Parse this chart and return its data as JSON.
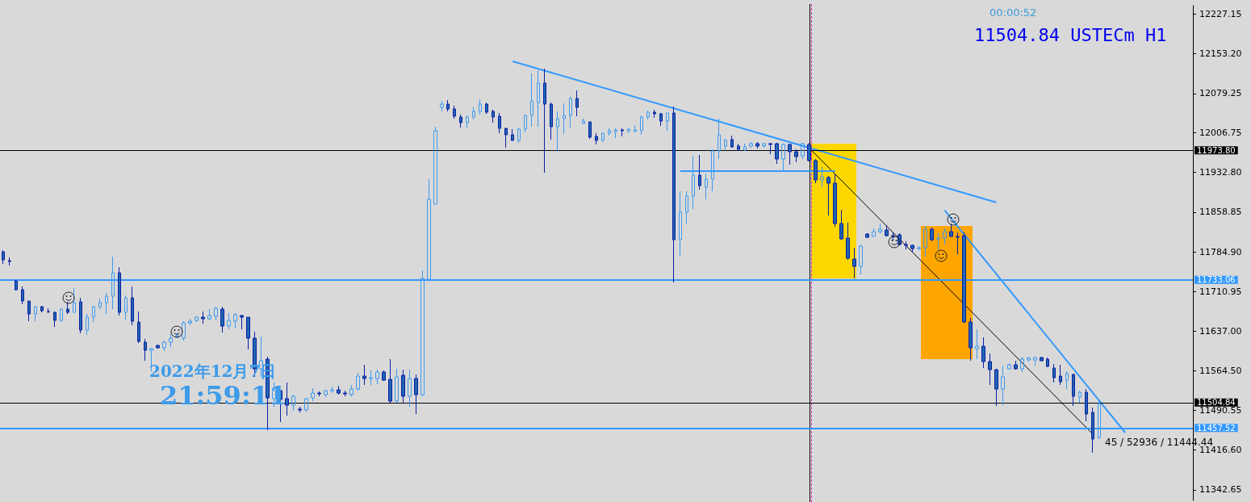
{
  "chart_data": {
    "type": "candlestick",
    "annotations": [
      "00:00:52",
      "11504.84 USTECm H1",
      "2022年12月7日",
      "21:59:11",
      "45 / 52936 / 11444.44"
    ],
    "categories": [
      null,
      null,
      null,
      null,
      null,
      null,
      null,
      null,
      null,
      null,
      null,
      null,
      null,
      null,
      null,
      null,
      null,
      null,
      null,
      null,
      null,
      null,
      null,
      null,
      null,
      null,
      null,
      null,
      null,
      null,
      null,
      null,
      null,
      null,
      null,
      null,
      null,
      null,
      null,
      null,
      null,
      null,
      null,
      null,
      null,
      null,
      null,
      null,
      null,
      null,
      null,
      null,
      null,
      null,
      null,
      null,
      null,
      null,
      null,
      null,
      null,
      null,
      null,
      null,
      null,
      null,
      null,
      null,
      null,
      null,
      null,
      null,
      null,
      null,
      null,
      null,
      null,
      null,
      null,
      null,
      null,
      null,
      null,
      null,
      null,
      null,
      null,
      null,
      null,
      null,
      null,
      null,
      null,
      null,
      null,
      null,
      null,
      null,
      null,
      null,
      null,
      null,
      null,
      null,
      null,
      null,
      null,
      null,
      null,
      null,
      null,
      null,
      null,
      null,
      null,
      null,
      null,
      null,
      null,
      null,
      null,
      null,
      null,
      null,
      null,
      null,
      null,
      null,
      null,
      null,
      null,
      null,
      null,
      null,
      null,
      null,
      null,
      null,
      null,
      null,
      null,
      null,
      null,
      null,
      null,
      null,
      null,
      null,
      null,
      null,
      null,
      null,
      null,
      null,
      null,
      null,
      null,
      null,
      null,
      null,
      null,
      null,
      null,
      null,
      null,
      null,
      null,
      null,
      null,
      null,
      null,
      null,
      null,
      null,
      null,
      null,
      null,
      null,
      null,
      null,
      null,
      null,
      null,
      null,
      null
    ],
    "ohlc": [
      [
        11785,
        11788,
        11762.5,
        11770
      ],
      [
        11768.5,
        11774.5,
        11759.5,
        11767
      ],
      [
        11731,
        11732.5,
        11713,
        11714.5
      ],
      [
        11714.5,
        11720.5,
        11687.5,
        11693.5
      ],
      [
        11693.5,
        11693.5,
        11656,
        11669.5
      ],
      [
        11669.5,
        11684.5,
        11656,
        11683
      ],
      [
        11683,
        11684.5,
        11672.5,
        11675.5
      ],
      [
        11674,
        11680,
        11671,
        11674
      ],
      [
        11672.5,
        11674,
        11645.5,
        11657.5
      ],
      [
        11657.5,
        11680,
        11654.5,
        11678.5
      ],
      [
        11678.5,
        11692,
        11669.5,
        11672.5
      ],
      [
        11672.5,
        11717.5,
        11672.5,
        11690.5
      ],
      [
        11692,
        11699.5,
        11633.5,
        11639.5
      ],
      [
        11639.5,
        11669.5,
        11630.5,
        11663.5
      ],
      [
        11663.5,
        11684.5,
        11654.5,
        11683
      ],
      [
        11683,
        11698,
        11678.5,
        11690.5
      ],
      [
        11690.5,
        11708.5,
        11669.5,
        11702.5
      ],
      [
        11702.5,
        11776,
        11678.5,
        11746
      ],
      [
        11746,
        11756.5,
        11666.5,
        11672.5
      ],
      [
        11672.5,
        11704,
        11657.5,
        11699.5
      ],
      [
        11699.5,
        11720.5,
        11648.5,
        11656
      ],
      [
        11654.5,
        11674,
        11615.5,
        11618.5
      ],
      [
        11617,
        11623,
        11582.5,
        11602
      ],
      [
        11602,
        11606.5,
        11563,
        11605
      ],
      [
        11611,
        11612.5,
        11605,
        11606.5
      ],
      [
        11606.5,
        11620,
        11600.5,
        11617
      ],
      [
        11617,
        11632,
        11608,
        11624.5
      ],
      [
        11627.5,
        11635,
        11624.5,
        11629
      ],
      [
        11624.5,
        11656,
        11620,
        11653
      ],
      [
        11653,
        11660.5,
        11648.5,
        11656
      ],
      [
        11657.5,
        11665,
        11654.5,
        11663.5
      ],
      [
        11663.5,
        11674,
        11651.5,
        11660.5
      ],
      [
        11660.5,
        11678.5,
        11657.5,
        11666.5
      ],
      [
        11665,
        11683,
        11657.5,
        11680
      ],
      [
        11678.5,
        11683,
        11635,
        11647
      ],
      [
        11647,
        11671,
        11641,
        11657.5
      ],
      [
        11656,
        11671,
        11642.5,
        11668
      ],
      [
        11666.5,
        11668,
        11641,
        11663.5
      ],
      [
        11663.5,
        11663.5,
        11603.5,
        11624.5
      ],
      [
        11624.5,
        11636.5,
        11552.5,
        11567.5
      ],
      [
        11567.5,
        11627.5,
        11552.5,
        11582.5
      ],
      [
        11585.5,
        11590,
        11453.5,
        11513.5
      ],
      [
        11512,
        11542,
        11497,
        11527
      ],
      [
        11527,
        11527,
        11468.5,
        11510.5
      ],
      [
        11512,
        11542,
        11480.5,
        11500
      ],
      [
        11500,
        11519.5,
        11489.5,
        11516.5
      ],
      [
        11492.5,
        11497,
        11486.5,
        11491
      ],
      [
        11491,
        11513.5,
        11488,
        11512
      ],
      [
        11513.5,
        11531.5,
        11507.5,
        11522.5
      ],
      [
        11522.5,
        11525.5,
        11516.5,
        11521
      ],
      [
        11519.5,
        11528.5,
        11515,
        11527
      ],
      [
        11527,
        11534.5,
        11522.5,
        11528.5
      ],
      [
        11528.5,
        11536,
        11519.5,
        11522.5
      ],
      [
        11522.5,
        11527,
        11516.5,
        11521
      ],
      [
        11519.5,
        11537.5,
        11516.5,
        11530
      ],
      [
        11530,
        11560,
        11527,
        11554
      ],
      [
        11554,
        11575,
        11537.5,
        11549.5
      ],
      [
        11549.5,
        11564.5,
        11537.5,
        11551
      ],
      [
        11549.5,
        11566,
        11539,
        11561.5
      ],
      [
        11561.5,
        11564.5,
        11545,
        11546.5
      ],
      [
        11548,
        11585.5,
        11504.5,
        11507.5
      ],
      [
        11507.5,
        11567.5,
        11504.5,
        11552.5
      ],
      [
        11555.5,
        11566,
        11504.5,
        11516.5
      ],
      [
        11516.5,
        11566,
        11497,
        11549.5
      ],
      [
        11549.5,
        11557,
        11483.5,
        11519.5
      ],
      [
        11519.5,
        11750.5,
        11516.5,
        11735.5
      ],
      [
        11734,
        11920,
        11734,
        11882.5
      ],
      [
        11873.5,
        12017.5,
        11873.5,
        12010
      ],
      [
        12053.5,
        12065.5,
        12046,
        12059.5
      ],
      [
        12059.5,
        12067,
        12046,
        12050.5
      ],
      [
        12050.5,
        12056.5,
        12032.5,
        12037
      ],
      [
        12035.5,
        12040,
        12016,
        12025
      ],
      [
        12025,
        12038.5,
        12014.5,
        12035.5
      ],
      [
        12035.5,
        12053.5,
        12031,
        12046
      ],
      [
        12046,
        12068.5,
        12040,
        12059.5
      ],
      [
        12059.5,
        12062.5,
        12041.5,
        12044.5
      ],
      [
        12046,
        12049,
        12025,
        12035.5
      ],
      [
        12037,
        12043,
        12005.5,
        12014.5
      ],
      [
        12014.5,
        12014.5,
        11978.5,
        12002.5
      ],
      [
        12002.5,
        12013,
        11992,
        11992
      ],
      [
        11992,
        12016,
        11987.5,
        12013
      ],
      [
        12013,
        12040,
        12007,
        12038.5
      ],
      [
        12038.5,
        12116.5,
        12017.5,
        12065.5
      ],
      [
        12062.5,
        12122.5,
        12017.5,
        12098.5
      ],
      [
        12098.5,
        12125.5,
        11932,
        12059.5
      ],
      [
        12059.5,
        12062.5,
        11993.5,
        12017.5
      ],
      [
        12017.5,
        12046,
        11971,
        12032.5
      ],
      [
        12032.5,
        12061,
        12004,
        12038.5
      ],
      [
        12038.5,
        12073,
        12016,
        12070
      ],
      [
        12070,
        12085,
        12037,
        12053.5
      ],
      [
        12023.5,
        12032.5,
        12022,
        12028
      ],
      [
        12026.5,
        12026.5,
        11995,
        11998
      ],
      [
        11999.5,
        12005.5,
        11984.5,
        11992
      ],
      [
        11992,
        12007,
        11989,
        12005.5
      ],
      [
        12005.5,
        12014.5,
        12001,
        12010
      ],
      [
        12008.5,
        12014.5,
        11996.5,
        12011.5
      ],
      [
        12011.5,
        12014.5,
        11999.5,
        12010
      ],
      [
        12010,
        12014.5,
        12005.5,
        12013
      ],
      [
        12008.5,
        12020.5,
        12008.5,
        12011.5
      ],
      [
        12010,
        12038.5,
        12002.5,
        12035.5
      ],
      [
        12035.5,
        12047.5,
        12031,
        12044.5
      ],
      [
        12044.5,
        12049,
        12034,
        12041.5
      ],
      [
        12041.5,
        12043,
        12019,
        12028
      ],
      [
        12028,
        12043,
        12010,
        12043
      ],
      [
        12043,
        12055,
        11728,
        11807.5
      ],
      [
        11807.5,
        11897.5,
        11776,
        11858.5
      ],
      [
        11858.5,
        11897.5,
        11837.5,
        11888.5
      ],
      [
        11888.5,
        11963.5,
        11864.5,
        11927.5
      ],
      [
        11927.5,
        11965,
        11900.5,
        11908
      ],
      [
        11905,
        11930.5,
        11882.5,
        11920
      ],
      [
        11920,
        11975.5,
        11897.5,
        11972.5
      ],
      [
        11972.5,
        12032.5,
        11957.5,
        12002.5
      ],
      [
        11981.5,
        11995,
        11975.5,
        11992
      ],
      [
        11993.5,
        12001,
        11978.5,
        11980
      ],
      [
        11981.5,
        11986,
        11972.5,
        11975.5
      ],
      [
        11974,
        11986,
        11972.5,
        11980
      ],
      [
        11981.5,
        11989,
        11978.5,
        11986
      ],
      [
        11986,
        11989,
        11977,
        11981.5
      ],
      [
        11982,
        11987,
        11978.5,
        11986
      ],
      [
        11986,
        11987.5,
        11966.5,
        11984.5
      ],
      [
        11986,
        11987.5,
        11948.5,
        11957.5
      ],
      [
        11957.5,
        11986,
        11936.5,
        11984.5
      ],
      [
        11984.5,
        11986,
        11947,
        11971
      ],
      [
        11971,
        11975.5,
        11951.5,
        11962
      ],
      [
        11963.5,
        11987.5,
        11957.5,
        11986
      ],
      [
        11984.5,
        11987.5,
        11953,
        11954.5
      ],
      [
        11954.5,
        11957.5,
        11912.5,
        11918.5
      ],
      [
        11918.5,
        11942.5,
        11905,
        11924.5
      ],
      [
        11923,
        11926,
        11852.5,
        11912.5
      ],
      [
        11912.5,
        11930.5,
        11831.5,
        11837.5
      ],
      [
        11837.5,
        11863,
        11807.5,
        11809
      ],
      [
        11810.5,
        11839,
        11770,
        11773
      ],
      [
        11771.5,
        11792.5,
        11735.5,
        11758
      ],
      [
        11758,
        11798.5,
        11743,
        11795.5
      ],
      [
        11818,
        11819.5,
        11810.5,
        11812
      ],
      [
        11813.5,
        11828.5,
        11813.5,
        11822.5
      ],
      [
        11822.5,
        11837.5,
        11819.5,
        11827
      ],
      [
        11825.5,
        11834.5,
        11813.5,
        11815
      ],
      [
        11815,
        11821,
        11806,
        11813.5
      ],
      [
        11816.5,
        11819.5,
        11797,
        11798.5
      ],
      [
        11798.5,
        11804.5,
        11789.5,
        11797
      ],
      [
        11797,
        11798.5,
        11783.5,
        11791
      ],
      [
        11791,
        11795.5,
        11788,
        11792.5
      ],
      [
        11792.5,
        11833,
        11776,
        11827
      ],
      [
        11827,
        11830,
        11804.5,
        11807.5
      ],
      [
        11809,
        11819.5,
        11788,
        11810.5
      ],
      [
        11810.5,
        11828.5,
        11798.5,
        11822.5
      ],
      [
        11822.5,
        11837.5,
        11813.5,
        11813.5
      ],
      [
        11813.5,
        11821,
        11780.5,
        11812
      ],
      [
        11815,
        11821,
        11653,
        11654.5
      ],
      [
        11654.5,
        11662,
        11582.5,
        11606.5
      ],
      [
        11605,
        11641,
        11585.5,
        11609.5
      ],
      [
        11609.5,
        11626,
        11569,
        11581
      ],
      [
        11581,
        11596,
        11537.5,
        11566
      ],
      [
        11566,
        11567.5,
        11498.5,
        11530
      ],
      [
        11530,
        11573.5,
        11500,
        11552.5
      ],
      [
        11567.5,
        11578,
        11566,
        11575
      ],
      [
        11575,
        11582.5,
        11566,
        11567.5
      ],
      [
        11567.5,
        11590,
        11561.5,
        11585.5
      ],
      [
        11584,
        11590,
        11581,
        11587.5
      ],
      [
        11584,
        11590,
        11573.5,
        11588.5
      ],
      [
        11588.5,
        11590,
        11582.5,
        11582.5
      ],
      [
        11585.5,
        11588.5,
        11570.5,
        11572
      ],
      [
        11569,
        11576.5,
        11542,
        11551
      ],
      [
        11554,
        11575,
        11537.5,
        11543.5
      ],
      [
        11546.5,
        11563,
        11530,
        11558.5
      ],
      [
        11557,
        11558.5,
        11498.5,
        11516.5
      ],
      [
        11515,
        11527,
        11504.5,
        11524
      ],
      [
        11524,
        11530,
        11470,
        11483.5
      ],
      [
        11486.5,
        11495.5,
        11411.5,
        11437
      ],
      [
        11440,
        11510.5,
        11437,
        11503
      ],
      null,
      null,
      null,
      null,
      null,
      null,
      null,
      null,
      null,
      null,
      null,
      null,
      null,
      null
    ],
    "series": [
      {
        "type": "line",
        "color": "#3399ff",
        "values": [
          null,
          null,
          null,
          null,
          null,
          null,
          null,
          null,
          null,
          null,
          null,
          null,
          null,
          null,
          null,
          null,
          null,
          null,
          null,
          null,
          null,
          null,
          null,
          null,
          null,
          null,
          null,
          null,
          null,
          null,
          null,
          null,
          null,
          null,
          null,
          null,
          null,
          null,
          null,
          null,
          null,
          null,
          null,
          null,
          null,
          null,
          null,
          null,
          null,
          null,
          null,
          null,
          null,
          null,
          null,
          null,
          null,
          null,
          null,
          null,
          null,
          null,
          null,
          null,
          null,
          null,
          null,
          null,
          null,
          null,
          null,
          null,
          null,
          null,
          null,
          null,
          null,
          null,
          null,
          12139,
          null,
          null,
          null,
          null,
          null,
          null,
          null,
          null,
          null,
          null,
          null,
          null,
          null,
          null,
          null,
          null,
          null,
          null,
          null,
          null,
          null,
          null,
          null,
          null,
          null,
          null,
          null,
          null,
          null,
          null,
          null,
          null,
          null,
          null,
          null,
          null,
          null,
          null,
          null,
          null,
          null,
          null,
          null,
          null,
          null,
          null,
          null,
          null,
          null,
          null,
          null,
          null,
          null,
          null,
          null,
          null,
          null,
          null,
          null,
          null,
          null,
          null,
          null,
          null,
          null,
          null,
          null,
          null,
          null,
          null,
          null,
          null,
          null,
          null,
          11877,
          null,
          null,
          null,
          null,
          null,
          null,
          null,
          null,
          null,
          null,
          null,
          null,
          null,
          null,
          null,
          null,
          null,
          null,
          null,
          null,
          null,
          null,
          null,
          null,
          null,
          null,
          null,
          null,
          null,
          null
        ]
      },
      {
        "type": "line",
        "color": "#3399ff",
        "values": [
          null,
          null,
          null,
          null,
          null,
          null,
          null,
          null,
          null,
          null,
          null,
          null,
          null,
          null,
          null,
          null,
          null,
          null,
          null,
          null,
          null,
          null,
          null,
          null,
          null,
          null,
          null,
          null,
          null,
          null,
          null,
          null,
          null,
          null,
          null,
          null,
          null,
          null,
          null,
          null,
          null,
          null,
          null,
          null,
          null,
          null,
          null,
          null,
          null,
          null,
          null,
          null,
          null,
          null,
          null,
          null,
          null,
          null,
          null,
          null,
          null,
          null,
          null,
          null,
          null,
          null,
          null,
          null,
          null,
          null,
          null,
          null,
          null,
          null,
          null,
          null,
          null,
          null,
          null,
          null,
          null,
          null,
          null,
          null,
          null,
          null,
          null,
          null,
          null,
          null,
          null,
          null,
          null,
          null,
          null,
          null,
          null,
          null,
          null,
          null,
          null,
          null,
          null,
          null,
          null,
          null,
          null,
          null,
          null,
          null,
          null,
          null,
          null,
          null,
          null,
          null,
          null,
          null,
          null,
          null,
          null,
          null,
          null,
          null,
          null,
          null,
          null,
          null,
          null,
          null,
          null,
          null,
          null,
          null,
          null,
          null,
          null,
          null,
          null,
          null,
          null,
          null,
          null,
          null,
          null,
          null,
          11862,
          null,
          null,
          null,
          null,
          null,
          null,
          null,
          null,
          null,
          null,
          null,
          null,
          null,
          null,
          null,
          null,
          null,
          null,
          null,
          null,
          null,
          null,
          null,
          null,
          null,
          null,
          null,
          11449,
          null,
          null,
          null,
          null,
          null,
          null,
          null,
          null,
          null,
          null
        ]
      },
      {
        "type": "line",
        "color": "#000000",
        "values": [
          null,
          null,
          null,
          null,
          null,
          null,
          null,
          null,
          null,
          null,
          null,
          null,
          null,
          null,
          null,
          null,
          null,
          null,
          null,
          null,
          null,
          null,
          null,
          null,
          null,
          null,
          null,
          null,
          null,
          null,
          null,
          null,
          null,
          null,
          null,
          null,
          null,
          null,
          null,
          null,
          null,
          null,
          null,
          null,
          null,
          null,
          null,
          null,
          null,
          null,
          null,
          null,
          null,
          null,
          null,
          null,
          null,
          null,
          null,
          null,
          null,
          null,
          null,
          null,
          null,
          null,
          null,
          null,
          null,
          null,
          null,
          null,
          null,
          null,
          null,
          null,
          null,
          null,
          null,
          null,
          null,
          null,
          null,
          null,
          null,
          null,
          null,
          null,
          null,
          null,
          null,
          null,
          null,
          null,
          null,
          null,
          null,
          null,
          null,
          null,
          null,
          null,
          null,
          null,
          null,
          null,
          null,
          null,
          null,
          null,
          null,
          null,
          null,
          null,
          null,
          null,
          null,
          null,
          null,
          null,
          null,
          null,
          null,
          null,
          null,
          11978,
          null,
          null,
          null,
          null,
          null,
          null,
          null,
          null,
          null,
          null,
          null,
          null,
          null,
          null,
          null,
          null,
          null,
          null,
          null,
          null,
          null,
          null,
          null,
          null,
          null,
          null,
          null,
          null,
          null,
          null,
          null,
          null,
          null,
          null,
          null,
          null,
          null,
          null,
          null,
          null,
          null,
          null,
          null,
          11446,
          null,
          null,
          null,
          null,
          null,
          null,
          null,
          null,
          null,
          null,
          null,
          null,
          null,
          null,
          null
        ]
      },
      {
        "type": "line",
        "color": "#3399ff",
        "values": [
          null,
          null,
          null,
          null,
          null,
          null,
          null,
          null,
          null,
          null,
          null,
          null,
          null,
          null,
          null,
          null,
          null,
          null,
          null,
          null,
          null,
          null,
          null,
          null,
          null,
          null,
          null,
          null,
          null,
          null,
          null,
          null,
          null,
          null,
          null,
          null,
          null,
          null,
          null,
          null,
          null,
          null,
          null,
          null,
          null,
          null,
          null,
          null,
          null,
          null,
          null,
          null,
          null,
          null,
          null,
          null,
          null,
          null,
          null,
          null,
          null,
          null,
          null,
          null,
          null,
          null,
          null,
          null,
          null,
          null,
          null,
          null,
          null,
          null,
          null,
          null,
          null,
          null,
          null,
          null,
          null,
          null,
          null,
          null,
          null,
          null,
          null,
          null,
          null,
          null,
          null,
          null,
          null,
          null,
          null,
          null,
          null,
          null,
          null,
          null,
          null,
          null,
          null,
          null,
          null,
          11935,
          null,
          null,
          null,
          null,
          null,
          null,
          null,
          null,
          null,
          null,
          null,
          null,
          null,
          null,
          null,
          null,
          null,
          null,
          null,
          null,
          null,
          null,
          null,
          11935,
          null,
          null,
          null,
          null,
          null,
          null,
          null,
          null,
          null,
          null,
          null,
          null,
          null,
          null,
          null,
          null,
          null,
          null,
          null,
          null,
          null,
          null,
          null,
          null,
          null,
          null,
          null,
          null,
          null,
          null,
          null,
          null,
          null,
          null,
          null,
          null,
          null,
          null,
          null,
          null,
          null,
          null,
          null,
          null,
          null,
          null,
          null,
          null,
          null,
          null,
          null,
          null,
          null,
          null,
          null
        ]
      }
    ],
    "ylim": [
      11323,
      12242.5
    ],
    "yticks": [
      12227.15,
      {
        "value": 12153.2,
        "label": "12153.20"
      },
      12079.25,
      12006.75,
      {
        "value": 11932.8,
        "label": "11932.80"
      },
      11858.85,
      {
        "value": 11784.9,
        "label": "11784.90"
      },
      11710.95,
      {
        "value": 11637,
        "label": "11637.00"
      },
      {
        "value": 11564.5,
        "label": "11564.50"
      },
      11490.55,
      {
        "value": 11416.6,
        "label": "11416.60"
      },
      11342.65
    ],
    "ref_lines": [
      {
        "axis": "y",
        "value": 11733.06,
        "label": "11733.06",
        "color": "#3399ff"
      },
      {
        "axis": "y",
        "value": 11457.52,
        "label": "11457.52",
        "color": "#3399ff"
      },
      {
        "axis": "y",
        "value": 11973.8,
        "label": "11973.80",
        "color": "#000000"
      },
      {
        "axis": "y",
        "value": 11504.84,
        "label": "11504.84",
        "color": "#000000"
      }
    ],
    "line_style": "solid"
  }
}
